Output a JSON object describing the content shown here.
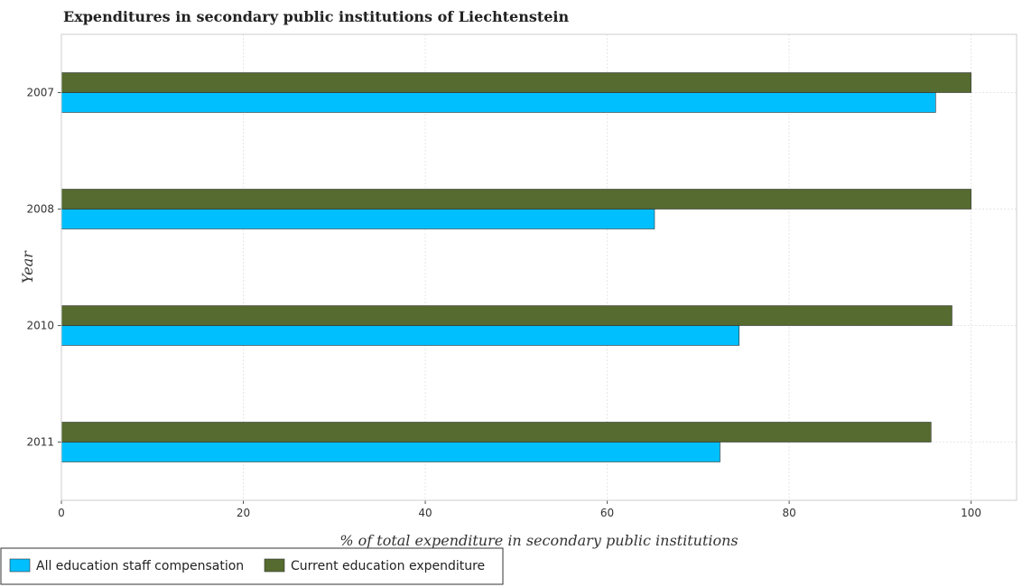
{
  "chart_data": {
    "type": "bar",
    "orientation": "horizontal",
    "title": "Expenditures in secondary public institutions of Liechtenstein",
    "xlabel": "% of total expenditure in secondary public institutions",
    "ylabel": "Year",
    "categories": [
      "2007",
      "2008",
      "2010",
      "2011"
    ],
    "xlim": [
      0,
      105
    ],
    "xticks": [
      0,
      20,
      40,
      60,
      80,
      100
    ],
    "grid": true,
    "legend_position": "bottom-left",
    "series": [
      {
        "name": "All education staff compensation",
        "color": "#00bfff",
        "values": [
          96.1,
          65.2,
          74.5,
          72.4
        ]
      },
      {
        "name": "Current education expenditure",
        "color": "#556b2f",
        "values": [
          100,
          100,
          97.9,
          95.6
        ]
      }
    ]
  }
}
